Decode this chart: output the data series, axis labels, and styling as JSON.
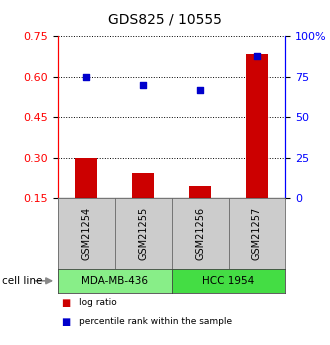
{
  "title": "GDS825 / 10555",
  "samples": [
    "GSM21254",
    "GSM21255",
    "GSM21256",
    "GSM21257"
  ],
  "log_ratio": [
    0.3,
    0.245,
    0.195,
    0.685
  ],
  "log_ratio_baseline": 0.15,
  "percentile_rank": [
    75.0,
    70.0,
    67.0,
    88.0
  ],
  "left_ylim": [
    0.15,
    0.75
  ],
  "right_ylim": [
    0,
    100
  ],
  "left_yticks": [
    0.15,
    0.3,
    0.45,
    0.6,
    0.75
  ],
  "right_yticks": [
    0,
    25,
    50,
    75,
    100
  ],
  "right_yticklabels": [
    "0",
    "25",
    "50",
    "75",
    "100%"
  ],
  "bar_color": "#cc0000",
  "dot_color": "#0000cc",
  "cell_lines": [
    {
      "label": "MDA-MB-436",
      "samples": [
        0,
        1
      ],
      "color": "#88ee88"
    },
    {
      "label": "HCC 1954",
      "samples": [
        2,
        3
      ],
      "color": "#44dd44"
    }
  ],
  "cell_line_row_label": "cell line",
  "sample_box_color": "#cccccc",
  "legend_items": [
    {
      "label": "log ratio",
      "color": "#cc0000"
    },
    {
      "label": "percentile rank within the sample",
      "color": "#0000cc"
    }
  ]
}
